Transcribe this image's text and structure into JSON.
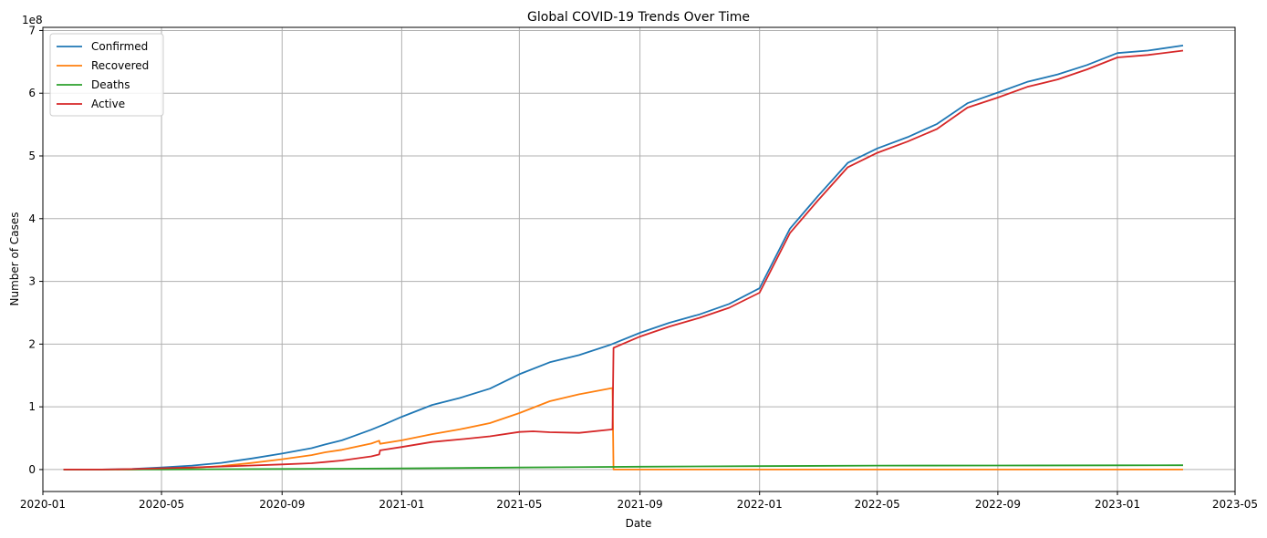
{
  "chart_data": {
    "type": "line",
    "title": "Global COVID-19 Trends Over Time",
    "xlabel": "Date",
    "ylabel": "Number of Cases",
    "y_scale_label": "1e8",
    "grid": true,
    "legend_position": "top-left",
    "xlim": [
      "2020-01-01",
      "2023-05-01"
    ],
    "ylim": [
      -35000000,
      705000000
    ],
    "x_ticks": [
      "2020-01",
      "2020-05",
      "2020-09",
      "2021-01",
      "2021-05",
      "2021-09",
      "2022-01",
      "2022-05",
      "2022-09",
      "2023-01",
      "2023-05"
    ],
    "y_ticks": [
      0,
      100000000,
      200000000,
      300000000,
      400000000,
      500000000,
      600000000,
      700000000
    ],
    "y_tick_labels": [
      "0",
      "1",
      "2",
      "3",
      "4",
      "5",
      "6",
      "7"
    ],
    "series": [
      {
        "name": "Confirmed",
        "color": "#1f77b4",
        "points": [
          [
            "2020-01-22",
            0
          ],
          [
            "2020-03-01",
            100000
          ],
          [
            "2020-04-01",
            900000
          ],
          [
            "2020-05-01",
            3300000
          ],
          [
            "2020-06-01",
            6300000
          ],
          [
            "2020-07-01",
            10700000
          ],
          [
            "2020-08-01",
            17600000
          ],
          [
            "2020-09-01",
            25500000
          ],
          [
            "2020-10-01",
            34000000
          ],
          [
            "2020-10-15",
            40000000
          ],
          [
            "2020-11-01",
            46500000
          ],
          [
            "2020-12-01",
            63500000
          ],
          [
            "2020-12-15",
            72500000
          ],
          [
            "2021-01-01",
            84000000
          ],
          [
            "2021-02-01",
            103000000
          ],
          [
            "2021-03-01",
            114000000
          ],
          [
            "2021-04-01",
            129000000
          ],
          [
            "2021-05-01",
            152000000
          ],
          [
            "2021-06-01",
            171000000
          ],
          [
            "2021-07-01",
            182500000
          ],
          [
            "2021-08-01",
            198500000
          ],
          [
            "2021-09-01",
            218000000
          ],
          [
            "2021-10-01",
            234000000
          ],
          [
            "2021-11-01",
            247500000
          ],
          [
            "2021-12-01",
            264000000
          ],
          [
            "2022-01-01",
            289000000
          ],
          [
            "2022-02-01",
            384000000
          ],
          [
            "2022-03-01",
            435000000
          ],
          [
            "2022-04-01",
            489000000
          ],
          [
            "2022-05-01",
            512000000
          ],
          [
            "2022-06-01",
            530000000
          ],
          [
            "2022-07-01",
            551000000
          ],
          [
            "2022-08-01",
            584000000
          ],
          [
            "2022-09-01",
            601000000
          ],
          [
            "2022-10-01",
            618000000
          ],
          [
            "2022-11-01",
            630000000
          ],
          [
            "2022-12-01",
            645000000
          ],
          [
            "2023-01-01",
            664000000
          ],
          [
            "2023-02-01",
            668000000
          ],
          [
            "2023-03-09",
            676000000
          ]
        ]
      },
      {
        "name": "Recovered",
        "color": "#ff7f0e",
        "points": [
          [
            "2020-01-22",
            0
          ],
          [
            "2020-03-01",
            50000
          ],
          [
            "2020-04-01",
            200000
          ],
          [
            "2020-05-01",
            1000000
          ],
          [
            "2020-06-01",
            2600000
          ],
          [
            "2020-07-01",
            5500000
          ],
          [
            "2020-08-01",
            10500000
          ],
          [
            "2020-09-01",
            16500000
          ],
          [
            "2020-10-01",
            23000000
          ],
          [
            "2020-10-15",
            27500000
          ],
          [
            "2020-11-01",
            31500000
          ],
          [
            "2020-12-01",
            41500000
          ],
          [
            "2020-12-09",
            46000000
          ],
          [
            "2020-12-10",
            41000000
          ],
          [
            "2021-01-01",
            46500000
          ],
          [
            "2021-02-01",
            56500000
          ],
          [
            "2021-03-01",
            64000000
          ],
          [
            "2021-04-01",
            74000000
          ],
          [
            "2021-05-01",
            90000000
          ],
          [
            "2021-06-01",
            109000000
          ],
          [
            "2021-07-01",
            120000000
          ],
          [
            "2021-08-04",
            130000000
          ],
          [
            "2021-08-05",
            0
          ],
          [
            "2022-01-01",
            0
          ],
          [
            "2023-03-09",
            0
          ]
        ]
      },
      {
        "name": "Deaths",
        "color": "#2ca02c",
        "points": [
          [
            "2020-01-22",
            0
          ],
          [
            "2020-05-01",
            230000
          ],
          [
            "2020-09-01",
            850000
          ],
          [
            "2021-01-01",
            1800000
          ],
          [
            "2021-05-01",
            3200000
          ],
          [
            "2021-09-01",
            4500000
          ],
          [
            "2022-01-01",
            5400000
          ],
          [
            "2022-05-01",
            6250000
          ],
          [
            "2022-09-01",
            6500000
          ],
          [
            "2023-01-01",
            6700000
          ],
          [
            "2023-03-09",
            6850000
          ]
        ]
      },
      {
        "name": "Active",
        "color": "#d62728",
        "points": [
          [
            "2020-01-22",
            0
          ],
          [
            "2020-03-01",
            50000
          ],
          [
            "2020-04-01",
            700000
          ],
          [
            "2020-05-01",
            2100000
          ],
          [
            "2020-06-01",
            3400000
          ],
          [
            "2020-07-01",
            4800000
          ],
          [
            "2020-08-01",
            6500000
          ],
          [
            "2020-09-01",
            8200000
          ],
          [
            "2020-10-01",
            10000000
          ],
          [
            "2020-10-15",
            12000000
          ],
          [
            "2020-11-01",
            14500000
          ],
          [
            "2020-12-01",
            21000000
          ],
          [
            "2020-12-09",
            24000000
          ],
          [
            "2020-12-10",
            30500000
          ],
          [
            "2021-01-01",
            36000000
          ],
          [
            "2021-02-01",
            44000000
          ],
          [
            "2021-03-01",
            48000000
          ],
          [
            "2021-04-01",
            53000000
          ],
          [
            "2021-05-01",
            60000000
          ],
          [
            "2021-05-15",
            61000000
          ],
          [
            "2021-06-01",
            59500000
          ],
          [
            "2021-07-01",
            58500000
          ],
          [
            "2021-08-04",
            64000000
          ],
          [
            "2021-08-05",
            194000000
          ],
          [
            "2021-09-01",
            212000000
          ],
          [
            "2021-10-01",
            228000000
          ],
          [
            "2021-11-01",
            242000000
          ],
          [
            "2021-12-01",
            258000000
          ],
          [
            "2022-01-01",
            282000000
          ],
          [
            "2022-02-01",
            377000000
          ],
          [
            "2022-03-01",
            428000000
          ],
          [
            "2022-04-01",
            482000000
          ],
          [
            "2022-05-01",
            505000000
          ],
          [
            "2022-06-01",
            523000000
          ],
          [
            "2022-07-01",
            543000000
          ],
          [
            "2022-08-01",
            577000000
          ],
          [
            "2022-09-01",
            593000000
          ],
          [
            "2022-10-01",
            610000000
          ],
          [
            "2022-11-01",
            622000000
          ],
          [
            "2022-12-01",
            638000000
          ],
          [
            "2023-01-01",
            657000000
          ],
          [
            "2023-02-01",
            661000000
          ],
          [
            "2023-03-09",
            668000000
          ]
        ]
      }
    ]
  }
}
